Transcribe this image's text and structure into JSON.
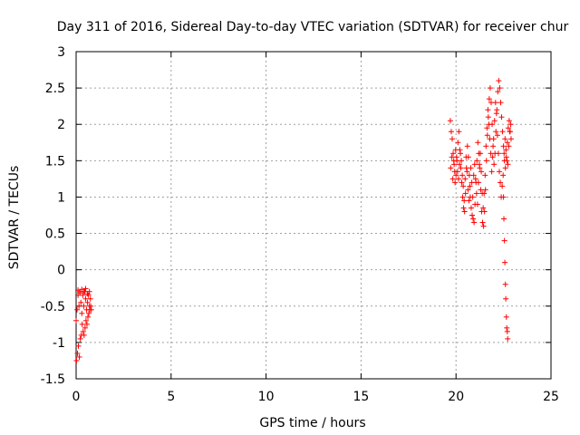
{
  "chart_data": {
    "type": "scatter",
    "title": "Day 311 of 2016, Sidereal Day-to-day VTEC variation (SDTVAR) for receiver chur",
    "xlabel": "GPS time / hours",
    "ylabel": "SDTVAR / TECUs",
    "xlim": [
      0,
      25
    ],
    "ylim": [
      -1.5,
      3
    ],
    "x_ticks": [
      0,
      5,
      10,
      15,
      20,
      25
    ],
    "x_tick_labels": [
      "0",
      "5",
      "10",
      "15",
      "20",
      "25"
    ],
    "y_ticks": [
      -1.5,
      -1,
      -0.5,
      0,
      0.5,
      1,
      1.5,
      2,
      2.5,
      3
    ],
    "y_tick_labels": [
      "-1.5",
      "-1",
      "-0.5",
      "0",
      "0.5",
      "1",
      "1.5",
      "2",
      "2.5",
      "3"
    ],
    "grid": true,
    "marker": "plus",
    "marker_color": "#ff0000",
    "series": [
      {
        "x": [
          0.0,
          0.05,
          0.1,
          0.15,
          0.2,
          0.25,
          0.3,
          0.35,
          0.4,
          0.45,
          0.5,
          0.55,
          0.6,
          0.65,
          0.7,
          0.75,
          0.8,
          0.02,
          0.07,
          0.12,
          0.17,
          0.22,
          0.27,
          0.32,
          0.37,
          0.42,
          0.47,
          0.52,
          0.57,
          0.62,
          0.67,
          0.72,
          0.77,
          0.1,
          0.2,
          0.3,
          0.4,
          0.5,
          0.6,
          0.7,
          19.7,
          19.75,
          19.8,
          19.85,
          19.9,
          19.95,
          20.0,
          20.05,
          20.1,
          20.15,
          20.2,
          20.25,
          20.3,
          20.35,
          20.4,
          20.45,
          20.5,
          20.55,
          20.6,
          20.65,
          20.7,
          20.75,
          20.8,
          20.85,
          20.9,
          20.95,
          21.0,
          21.05,
          21.1,
          21.15,
          21.2,
          21.25,
          21.3,
          21.35,
          21.4,
          21.45,
          21.5,
          21.55,
          21.6,
          21.65,
          21.7,
          21.75,
          21.8,
          21.85,
          21.9,
          21.95,
          22.0,
          22.05,
          22.1,
          22.15,
          22.2,
          22.25,
          22.3,
          22.35,
          22.4,
          22.45,
          22.5,
          22.55,
          22.6,
          22.65,
          22.7,
          22.75,
          22.8,
          22.85,
          22.9,
          19.72,
          19.78,
          19.83,
          19.88,
          19.93,
          19.98,
          20.03,
          20.08,
          20.13,
          20.18,
          20.23,
          20.28,
          20.33,
          20.38,
          20.43,
          20.48,
          20.53,
          20.58,
          20.63,
          20.68,
          20.73,
          20.78,
          20.83,
          20.88,
          20.93,
          20.98,
          21.03,
          21.08,
          21.13,
          21.18,
          21.23,
          21.28,
          21.33,
          21.38,
          21.43,
          21.48,
          21.53,
          21.58,
          21.63,
          21.68,
          21.73,
          21.78,
          21.83,
          21.88,
          21.93,
          21.98,
          22.03,
          22.08,
          22.13,
          22.18,
          22.23,
          22.28,
          22.33,
          22.38,
          22.43,
          22.48,
          22.53,
          22.58,
          22.63,
          22.68,
          22.73,
          22.78,
          22.83,
          22.88,
          22.5,
          22.52,
          22.55,
          22.57,
          22.6,
          22.62,
          22.65,
          22.67,
          22.7,
          22.72
        ],
        "y": [
          -0.7,
          -0.55,
          -0.35,
          -0.5,
          -0.3,
          -0.45,
          -0.6,
          -0.35,
          -0.5,
          -0.3,
          -0.4,
          -0.55,
          -0.45,
          -0.35,
          -0.5,
          -0.4,
          -0.55,
          -1.25,
          -1.15,
          -1.05,
          -1.2,
          -0.95,
          -0.9,
          -0.75,
          -0.85,
          -0.9,
          -0.8,
          -0.7,
          -0.75,
          -0.65,
          -0.6,
          -0.55,
          -0.5,
          -0.28,
          -0.32,
          -0.27,
          -0.3,
          -0.26,
          -0.33,
          -0.3,
          2.05,
          1.9,
          1.8,
          1.6,
          1.45,
          1.2,
          1.3,
          1.5,
          1.75,
          1.9,
          1.65,
          1.4,
          1.2,
          1.0,
          0.85,
          0.8,
          1.05,
          1.4,
          1.7,
          1.55,
          1.3,
          1.0,
          0.85,
          0.75,
          0.7,
          0.65,
          0.9,
          1.2,
          1.5,
          1.75,
          1.6,
          1.4,
          1.1,
          0.8,
          0.65,
          0.6,
          0.8,
          1.1,
          1.5,
          1.85,
          2.1,
          2.35,
          2.5,
          2.3,
          2.0,
          1.7,
          1.45,
          1.6,
          1.9,
          2.2,
          2.45,
          2.6,
          2.5,
          2.3,
          2.1,
          1.9,
          1.7,
          1.5,
          1.4,
          1.55,
          1.75,
          1.95,
          2.05,
          1.9,
          1.8,
          1.4,
          1.55,
          1.25,
          1.5,
          1.35,
          1.65,
          1.55,
          1.35,
          1.25,
          1.45,
          1.6,
          1.5,
          1.3,
          1.15,
          0.95,
          1.25,
          1.55,
          1.35,
          1.1,
          0.95,
          1.15,
          1.4,
          1.2,
          1.0,
          1.3,
          1.45,
          1.25,
          1.05,
          0.9,
          1.2,
          1.45,
          1.6,
          1.35,
          1.05,
          0.85,
          1.05,
          1.3,
          1.7,
          1.95,
          2.2,
          2.0,
          1.8,
          1.6,
          1.35,
          1.55,
          1.8,
          2.05,
          2.3,
          2.15,
          1.85,
          1.6,
          1.35,
          1.2,
          1.0,
          1.15,
          1.3,
          1.6,
          1.8,
          1.65,
          1.5,
          1.45,
          1.7,
          1.9,
          2.0,
          1.0,
          0.7,
          0.4,
          0.1,
          -0.2,
          -0.4,
          -0.65,
          -0.8,
          -0.85,
          -0.95
        ]
      }
    ]
  }
}
